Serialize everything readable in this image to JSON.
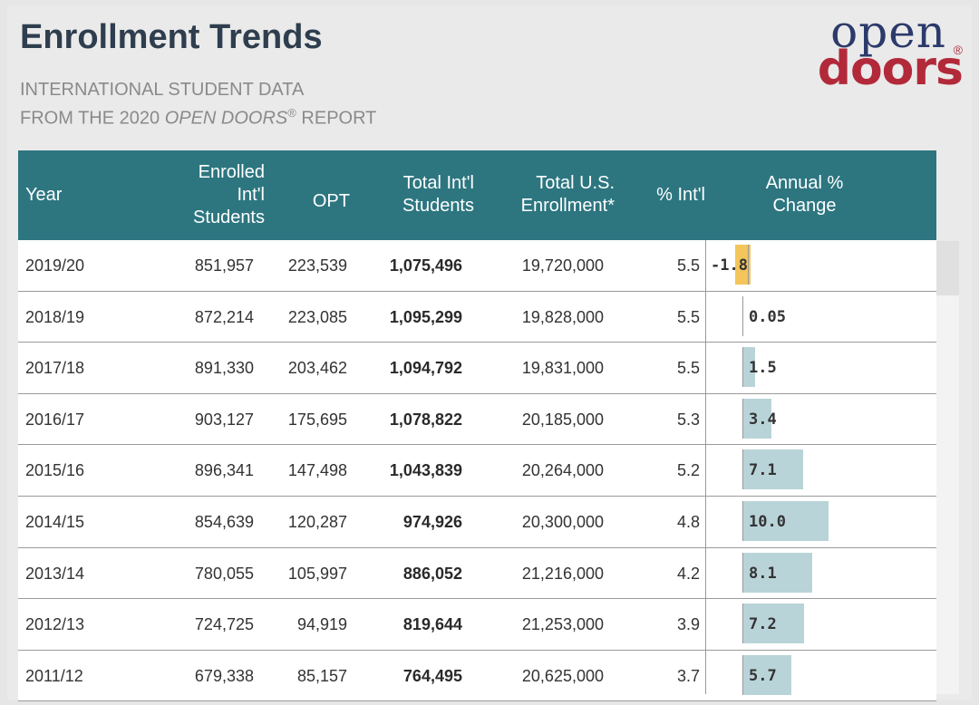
{
  "header": {
    "title": "Enrollment Trends",
    "subtitle_line1": "INTERNATIONAL STUDENT DATA",
    "subtitle_line2_prefix": "FROM THE 2020 ",
    "subtitle_line2_italic": "OPEN DOORS",
    "subtitle_line2_reg": "®",
    "subtitle_line2_suffix": " REPORT"
  },
  "logo": {
    "open": "open",
    "reg": "®",
    "doors": "doors"
  },
  "columns": [
    [
      "Year"
    ],
    [
      "Enrolled",
      "Int'l",
      "Students"
    ],
    [
      "OPT"
    ],
    [
      "Total Int'l",
      "Students"
    ],
    [
      "Total U.S.",
      "Enrollment*"
    ],
    [
      "% Int'l"
    ],
    [
      "Annual %",
      "Change"
    ]
  ],
  "rows": [
    {
      "year": "2019/20",
      "enrolled": "851,957",
      "opt": "223,539",
      "total": "1,075,496",
      "us": "19,720,000",
      "pct": "5.5",
      "change": "-1.8",
      "change_value": -1.8
    },
    {
      "year": "2018/19",
      "enrolled": "872,214",
      "opt": "223,085",
      "total": "1,095,299",
      "us": "19,828,000",
      "pct": "5.5",
      "change": "0.05",
      "change_value": 0.05
    },
    {
      "year": "2017/18",
      "enrolled": "891,330",
      "opt": "203,462",
      "total": "1,094,792",
      "us": "19,831,000",
      "pct": "5.5",
      "change": "1.5",
      "change_value": 1.5
    },
    {
      "year": "2016/17",
      "enrolled": "903,127",
      "opt": "175,695",
      "total": "1,078,822",
      "us": "20,185,000",
      "pct": "5.3",
      "change": "3.4",
      "change_value": 3.4
    },
    {
      "year": "2015/16",
      "enrolled": "896,341",
      "opt": "147,498",
      "total": "1,043,839",
      "us": "20,264,000",
      "pct": "5.2",
      "change": "7.1",
      "change_value": 7.1
    },
    {
      "year": "2014/15",
      "enrolled": "854,639",
      "opt": "120,287",
      "total": "974,926",
      "us": "20,300,000",
      "pct": "4.8",
      "change": "10.0",
      "change_value": 10.0
    },
    {
      "year": "2013/14",
      "enrolled": "780,055",
      "opt": "105,997",
      "total": "886,052",
      "us": "21,216,000",
      "pct": "4.2",
      "change": "8.1",
      "change_value": 8.1
    },
    {
      "year": "2012/13",
      "enrolled": "724,725",
      "opt": "94,919",
      "total": "819,644",
      "us": "21,253,000",
      "pct": "3.9",
      "change": "7.2",
      "change_value": 7.2
    },
    {
      "year": "2011/12",
      "enrolled": "679,338",
      "opt": "85,157",
      "total": "764,495",
      "us": "20,625,000",
      "pct": "3.7",
      "change": "5.7",
      "change_value": 5.7
    }
  ],
  "colors": {
    "header_bg": "#2d7680",
    "positive_bar": "#b9d4d9",
    "negative_bar": "#f3c55a",
    "title": "#2e3e4e",
    "logo_blue": "#2c3a6b",
    "logo_red": "#b22a3a"
  }
}
